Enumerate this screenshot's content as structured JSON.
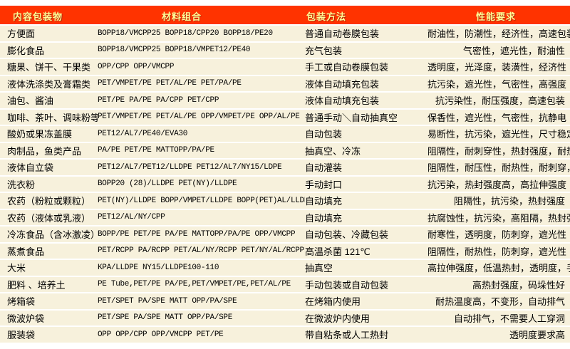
{
  "colors": {
    "header_bg": "#FF3300",
    "header_text": "#FFFF99",
    "row_bg": "#F7F1DC",
    "separator": "#FFFFFF",
    "body_text": "#000000"
  },
  "table": {
    "headers": [
      {
        "label": "内容包装物"
      },
      {
        "label": "材料组合"
      },
      {
        "label": "包装方法"
      },
      {
        "label": "性能要求"
      }
    ],
    "rows": [
      {
        "item": "方便面",
        "materials": "BOPP18/VMCPP25  BOPP18/CPP20  BOPP18/PE20",
        "method": "普通自动卷膜包装",
        "requirements": "耐油性，防潮性，经济性，高速包装"
      },
      {
        "item": "膨化食品",
        "materials": "BOPP18/VMCPP25  BOPP18/VMPET12/PE40",
        "method": "充气包装",
        "requirements": "气密性，遮光性，耐油性"
      },
      {
        "item": "糖果、饼干、干果类",
        "materials": "OPP/CPP OPP/VMCPP",
        "method": "手工或自动卷膜包装",
        "requirements": "透明度，光泽度，装潢性，经济性"
      },
      {
        "item": "液体洗涤类及膏霜类",
        "materials": "PET/VMPET/PE PET/AL/PE  PET/PA/PE",
        "method": "液体自动填充包装",
        "requirements": "抗污染，遮光性，气密性，高强度"
      },
      {
        "item": "油包、酱油",
        "materials": "PET/PE  PA/PE PA/CPP PET/CPP",
        "method": "液体自动填充包装",
        "requirements": "抗污染性，耐压强度，高速包装"
      },
      {
        "item": "咖啡、茶叶、调味粉等",
        "materials": "PET/VMPET/PE PET/AL/PE OPP/VMPET/PE OPP/AL/PE",
        "method": "普通手动＼自动抽真空",
        "requirements": "保香性，遮光性，气密性，抗静电"
      },
      {
        "item": "酸奶或果冻盖膜",
        "materials": "PET12/AL7/PE40/EVA30",
        "method": "自动包装",
        "requirements": "易断性，抗污染，遮光性，尺寸稳定"
      },
      {
        "item": "肉制品，鱼类产品",
        "materials": "PA/PE PET/PE MATTOPP/PA/PE",
        "method": "抽真空、冷冻",
        "requirements": "阻隔性，耐刺穿性，热封强度，耐热性"
      },
      {
        "item": "液体自立袋",
        "materials": "PET12/AL7/PET12/LLDPE PET12/AL7/NY15/LDPE",
        "method": "自动灌装",
        "requirements": "阻隔性，耐压性，耐热性，耐刺穿，抗污染"
      },
      {
        "item": "洗衣粉",
        "materials": "BOPP20 (28)/LLDPE PET(NY)/LLDPE",
        "method": "手动封口",
        "requirements": "抗污染，热封强度高，高拉伸强度"
      },
      {
        "item": "农药（粉粒或颗粒）",
        "materials": "PET(NY)/LLDPE BOPP/VMPET/LLDPE BOPP(PET)AL/LLDPE",
        "method": "自动填充",
        "requirements": "阻隔性，抗污染，热封强度"
      },
      {
        "item": "农药（液体或乳液）",
        "materials": "PET12/AL/NY/CPP",
        "method": "自动填充",
        "requirements": "抗腐蚀性，抗污染，高阻隔，热封强度"
      },
      {
        "item": "冷冻食品（含冰激凌）",
        "materials": "BOPP/PE PET/PE PA/PE MATTOPP/PA/PE OPP/VMCPP",
        "method": "自动包装、冷藏包装",
        "requirements": "耐寒性，透明度，防刺穿，遮光性"
      },
      {
        "item": "蒸煮食品",
        "materials": "PET/RCPP PA/RCPP PET/AL/NY/RCPP PET/NY/AL/RCPP",
        "method": "高温杀菌 121℃",
        "requirements": "阻隔性，耐热性，防刺穿，遮光性"
      },
      {
        "item": "大米",
        "materials": "KPA/LLDPE NY15/LLDPE100-110",
        "method": "抽真空",
        "requirements": "高拉伸强度，低温热封，透明度，手挽强度高"
      },
      {
        "item": "肥料 、培养土",
        "materials": "PE Tube,PET/PE  PA/PE,PET/VMPET/PE,PET/AL/PE",
        "method": "手动包装或自动包装",
        "requirements": "高热封强度，码垛性好"
      },
      {
        "item": "烤箱袋",
        "materials": "PET/SPET PA/SPE MATT OPP/PA/SPE",
        "method": "在烤箱内使用",
        "requirements": "耐热温度高，不变形，自动排气"
      },
      {
        "item": "微波炉袋",
        "materials": "PET/SPE PA/SPE MATT OPP/PA/SPE",
        "method": "在微波炉内使用",
        "requirements": "自动排气，不需要人工穿洞"
      },
      {
        "item": "服装袋",
        "materials": "OPP  OPP/CPP OPP/VMCPP PET/PE",
        "method": "带自粘条或人工热封",
        "requirements": "透明度要求高"
      }
    ]
  }
}
